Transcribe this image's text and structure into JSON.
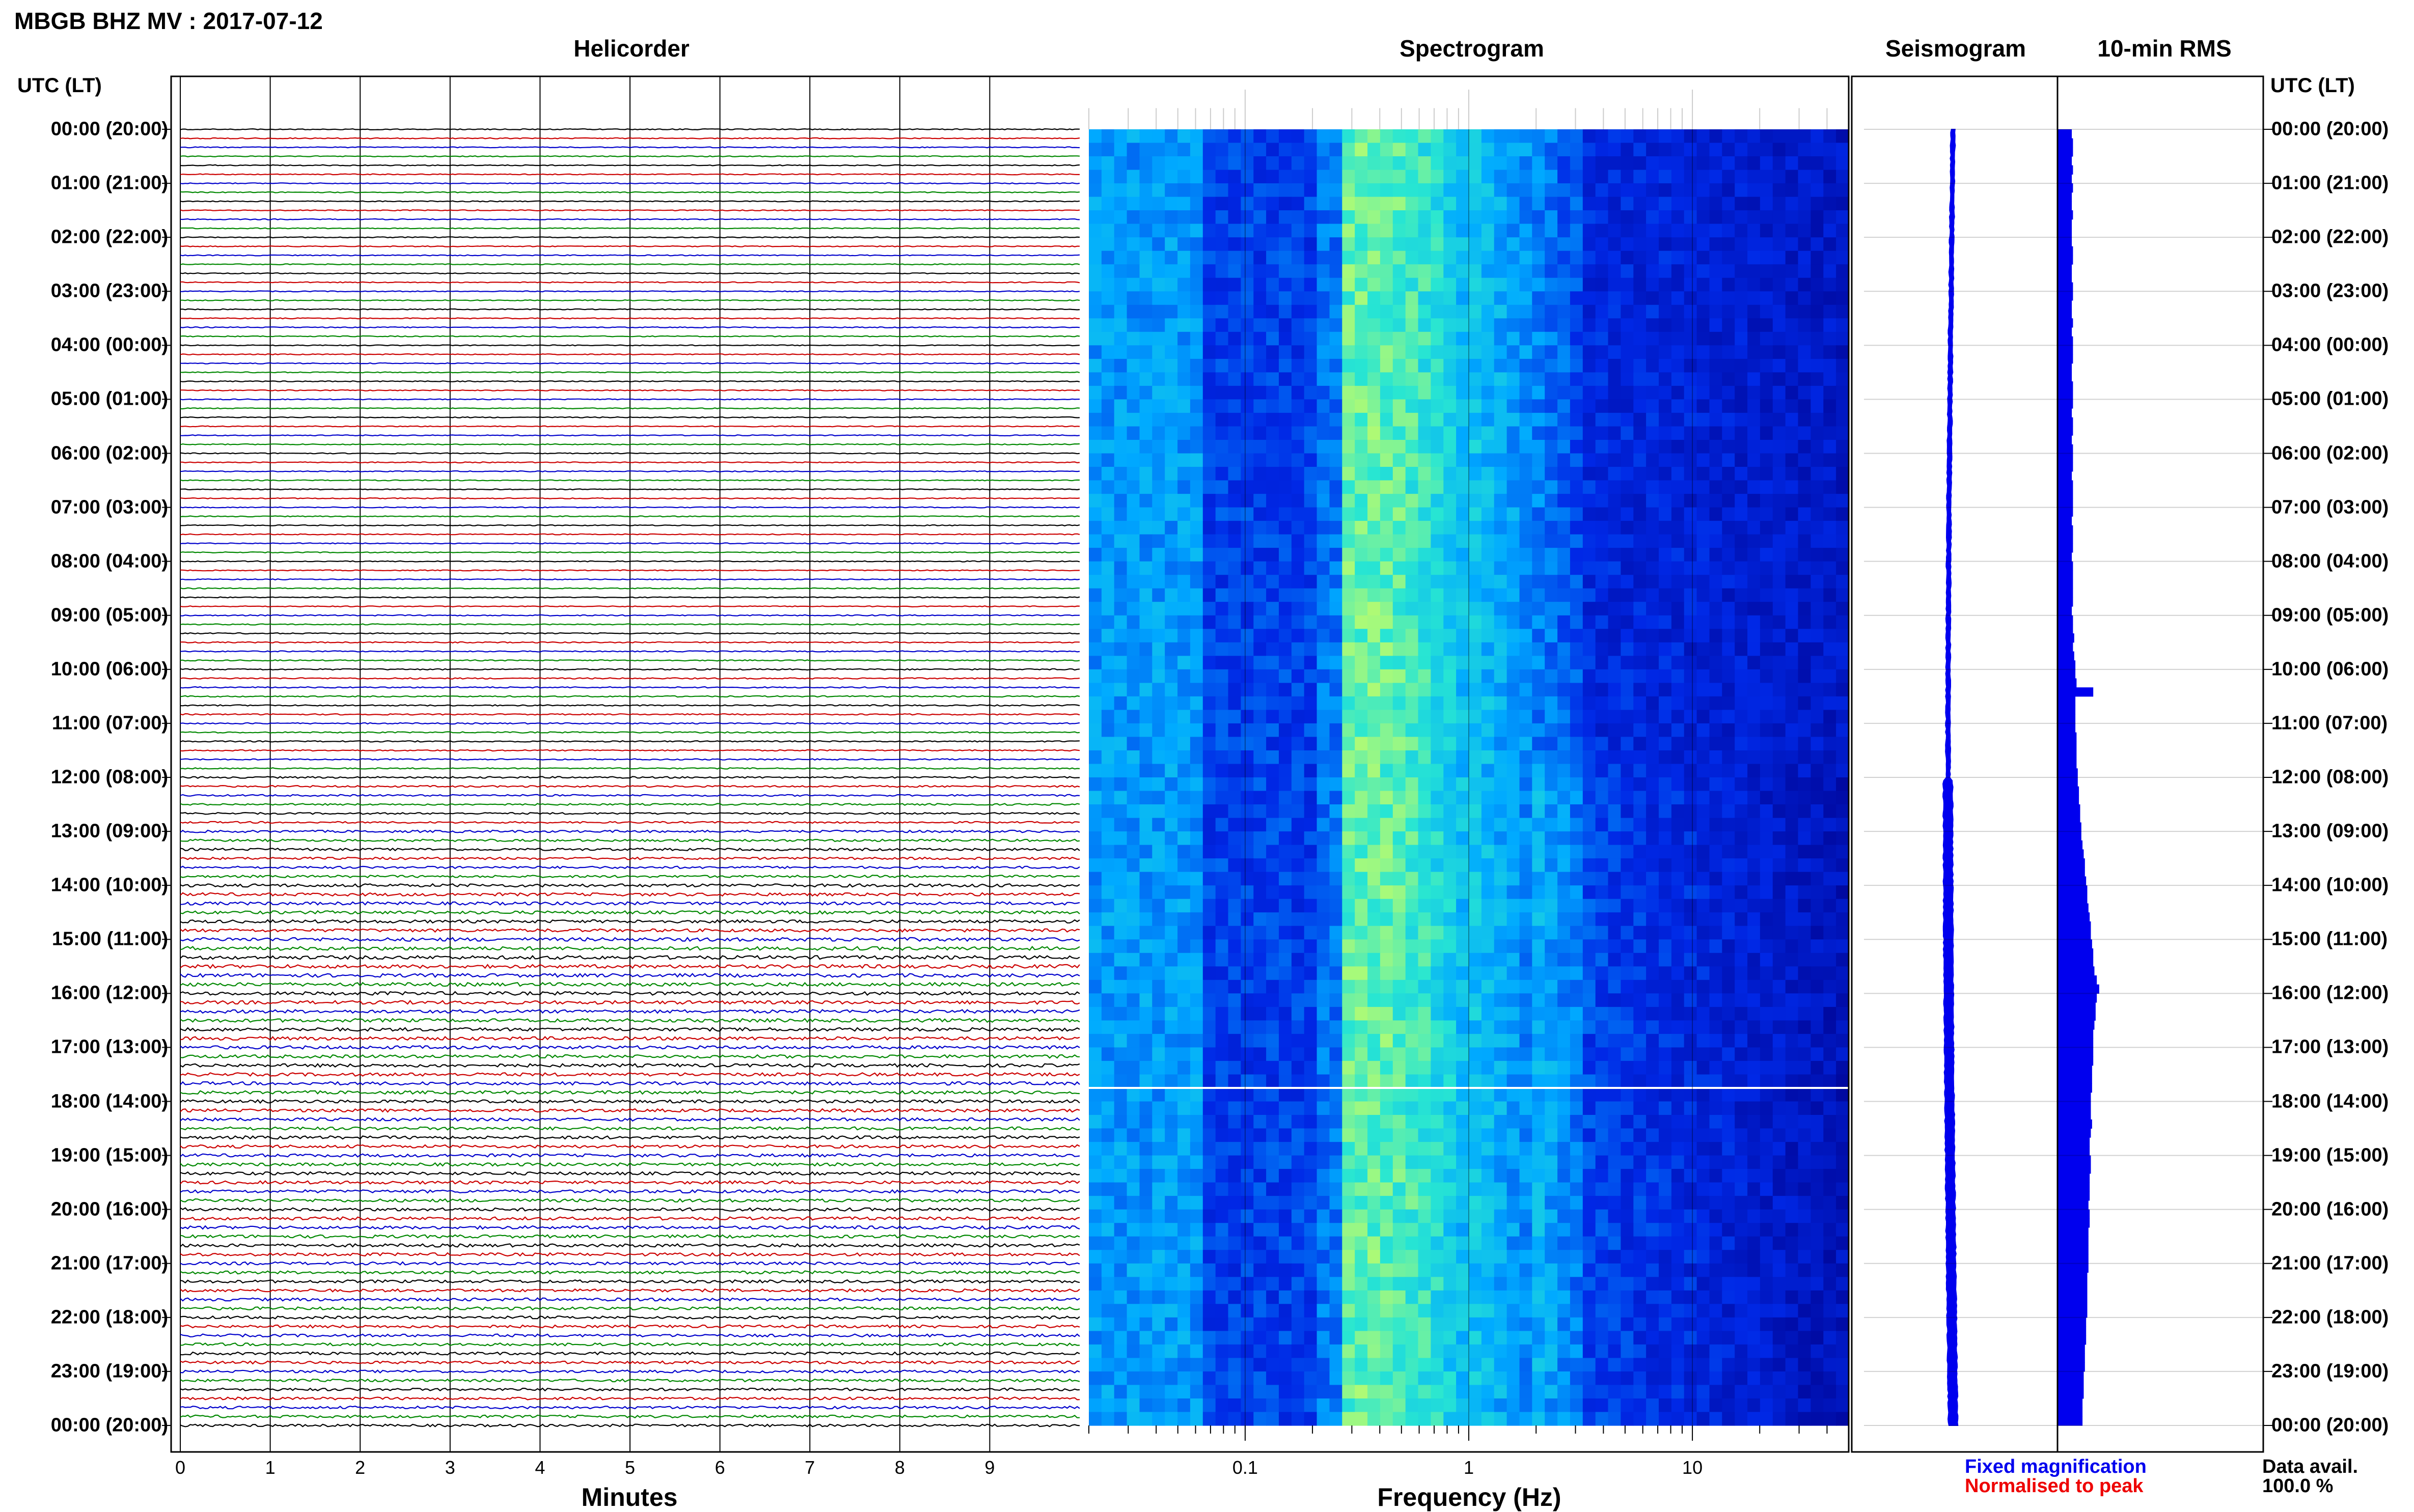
{
  "title": "MBGB BHZ MV : 2017-07-12",
  "panels": {
    "helicorder": "Helicorder",
    "spectrogram": "Spectrogram",
    "seismogram": "Seismogram",
    "rms": "10-min RMS"
  },
  "time_axis_label_left": "UTC (LT)",
  "time_axis_label_right": "UTC (LT)",
  "x_labels": {
    "helicorder": "Minutes",
    "spectrogram": "Frequency (Hz)"
  },
  "legend": {
    "fixed": "Fixed magnification",
    "normalised": "Normalised to peak",
    "fixed_color": "#0000ee",
    "normalised_color": "#ee0000"
  },
  "data_availability": {
    "label": "Data avail.",
    "value": "100.0 %"
  },
  "chart_data": {
    "type": "heatmap",
    "title": "MBGB BHZ MV : 2017-07-12",
    "hour_labels": [
      "00:00 (20:00)",
      "01:00 (21:00)",
      "02:00 (22:00)",
      "03:00 (23:00)",
      "04:00 (00:00)",
      "05:00 (01:00)",
      "06:00 (02:00)",
      "07:00 (03:00)",
      "08:00 (04:00)",
      "09:00 (05:00)",
      "10:00 (06:00)",
      "11:00 (07:00)",
      "12:00 (08:00)",
      "13:00 (09:00)",
      "14:00 (10:00)",
      "15:00 (11:00)",
      "16:00 (12:00)",
      "17:00 (13:00)",
      "18:00 (14:00)",
      "19:00 (15:00)",
      "20:00 (16:00)",
      "21:00 (17:00)",
      "22:00 (18:00)",
      "23:00 (19:00)",
      "00:00 (20:00)"
    ],
    "helicorder": {
      "xlabel": "Minutes",
      "x_ticks": [
        "0",
        "1",
        "2",
        "3",
        "4",
        "5",
        "6",
        "7",
        "8",
        "9"
      ],
      "xlim": [
        0,
        10
      ],
      "traces_per_hour": 6,
      "trace_colors": [
        "#000000",
        "#cc0000",
        "#0000cc",
        "#008800"
      ],
      "trace_amplitude_by_hour": [
        0.3,
        0.3,
        0.3,
        0.3,
        0.3,
        0.3,
        0.3,
        0.3,
        0.3,
        0.35,
        0.4,
        0.4,
        0.55,
        0.75,
        1.0,
        1.15,
        1.1,
        1.05,
        1.0,
        1.0,
        1.0,
        0.95,
        0.9,
        0.85,
        0.8
      ]
    },
    "spectrogram": {
      "xlabel": "Frequency (Hz)",
      "x_scale": "log",
      "x_ticks": [
        "0.1",
        "1",
        "10"
      ],
      "xlim": [
        0.02,
        50
      ],
      "colormap": "jet-blue",
      "gap_hour": 17.75
    },
    "seismogram": {
      "trace_color": "#0000ee"
    },
    "rms": {
      "bar_color": "#0000ee",
      "interval_minutes": 10,
      "values": [
        0.12,
        0.13,
        0.13,
        0.12,
        0.13,
        0.12,
        0.13,
        0.12,
        0.12,
        0.13,
        0.12,
        0.12,
        0.12,
        0.13,
        0.13,
        0.12,
        0.12,
        0.13,
        0.13,
        0.12,
        0.12,
        0.13,
        0.12,
        0.13,
        0.13,
        0.13,
        0.12,
        0.12,
        0.13,
        0.13,
        0.13,
        0.12,
        0.13,
        0.13,
        0.12,
        0.13,
        0.13,
        0.13,
        0.12,
        0.13,
        0.13,
        0.13,
        0.13,
        0.12,
        0.13,
        0.13,
        0.13,
        0.12,
        0.13,
        0.13,
        0.13,
        0.13,
        0.13,
        0.12,
        0.13,
        0.13,
        0.14,
        0.13,
        0.14,
        0.15,
        0.15,
        0.16,
        0.3,
        0.15,
        0.15,
        0.15,
        0.15,
        0.16,
        0.16,
        0.16,
        0.16,
        0.17,
        0.17,
        0.18,
        0.18,
        0.19,
        0.19,
        0.2,
        0.2,
        0.21,
        0.22,
        0.23,
        0.23,
        0.24,
        0.25,
        0.25,
        0.26,
        0.27,
        0.28,
        0.28,
        0.29,
        0.3,
        0.3,
        0.31,
        0.33,
        0.35,
        0.33,
        0.32,
        0.32,
        0.31,
        0.3,
        0.3,
        0.3,
        0.3,
        0.29,
        0.29,
        0.29,
        0.28,
        0.28,
        0.28,
        0.29,
        0.28,
        0.27,
        0.27,
        0.28,
        0.28,
        0.27,
        0.27,
        0.27,
        0.26,
        0.27,
        0.27,
        0.26,
        0.26,
        0.26,
        0.26,
        0.26,
        0.25,
        0.25,
        0.25,
        0.25,
        0.25,
        0.24,
        0.24,
        0.24,
        0.23,
        0.23,
        0.23,
        0.22,
        0.22,
        0.22,
        0.21,
        0.21,
        0.21
      ]
    }
  }
}
